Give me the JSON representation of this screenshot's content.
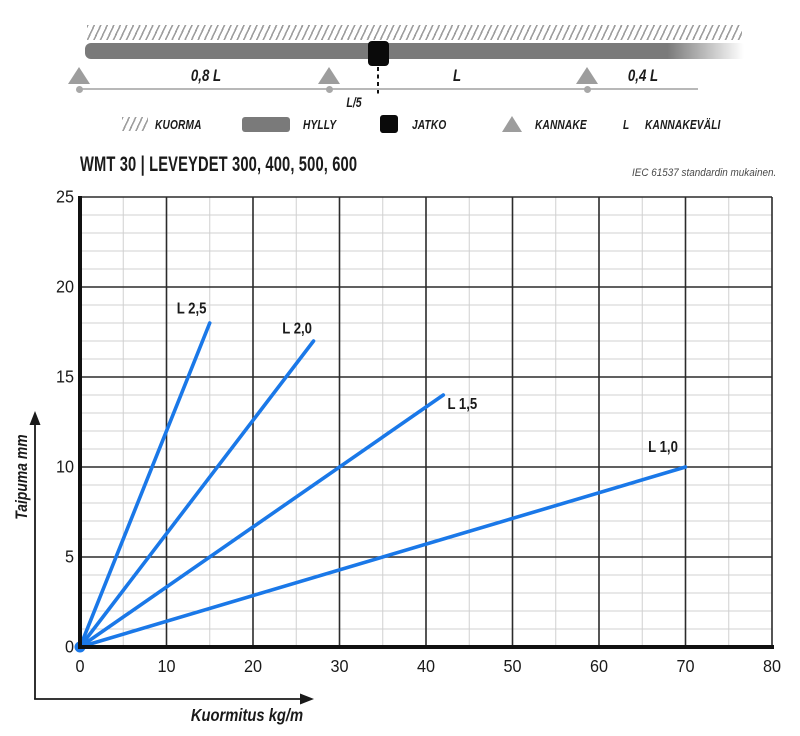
{
  "header": {
    "title": "WMT 30 | LEVEYDET 300, 400, 500, 600",
    "note": "IEC 61537 standardin mukainen."
  },
  "beam_diagram": {
    "labels": {
      "span_left": "0,8 L",
      "span_mid": "L",
      "span_right": "0,4 L",
      "joint_offset": "L/5"
    },
    "legend": [
      {
        "icon": "load-hatch-icon",
        "label": "KUORMA"
      },
      {
        "icon": "shelf-bar-icon",
        "label": "HYLLY"
      },
      {
        "icon": "joint-square-icon",
        "label": "JATKO"
      },
      {
        "icon": "support-triangle-icon",
        "label": "KANNAKE"
      },
      {
        "icon": "letter-L",
        "symbol": "L",
        "label": "KANNAKEVÄLI"
      }
    ],
    "colors": {
      "shelf_gray": "#7a7a7a",
      "support_gray": "#9d9d9d",
      "joint_black": "#0a0a0a",
      "hatch_gray": "#9e9e9e"
    }
  },
  "chart_data": {
    "type": "line",
    "title": "WMT 30 | LEVEYDET 300, 400, 500, 600",
    "xlabel": "Kuormitus kg/m",
    "ylabel": "Taipuma mm",
    "xlim": [
      0,
      80
    ],
    "ylim": [
      0,
      25
    ],
    "x_major_step": 10,
    "x_minor_step": 5,
    "y_major_step": 5,
    "y_minor_step": 1,
    "x_ticks": [
      0,
      10,
      20,
      30,
      40,
      50,
      60,
      70,
      80
    ],
    "y_ticks": [
      0,
      5,
      10,
      15,
      20,
      25
    ],
    "grid": true,
    "legend_position": "none",
    "line_color": "#1a78e8",
    "series": [
      {
        "name": "L 2,5",
        "points": [
          [
            0,
            0
          ],
          [
            15,
            18
          ]
        ],
        "label_at": [
          12.9,
          18.8
        ]
      },
      {
        "name": "L 2,0",
        "points": [
          [
            0,
            0
          ],
          [
            27,
            17
          ]
        ],
        "label_at": [
          25.1,
          17.7
        ]
      },
      {
        "name": "L 1,5",
        "points": [
          [
            0,
            0
          ],
          [
            42,
            14
          ]
        ],
        "label_at": [
          44.2,
          13.5
        ]
      },
      {
        "name": "L 1,0",
        "points": [
          [
            0,
            0
          ],
          [
            70,
            10
          ]
        ],
        "label_at": [
          67.4,
          11.1
        ]
      }
    ]
  }
}
